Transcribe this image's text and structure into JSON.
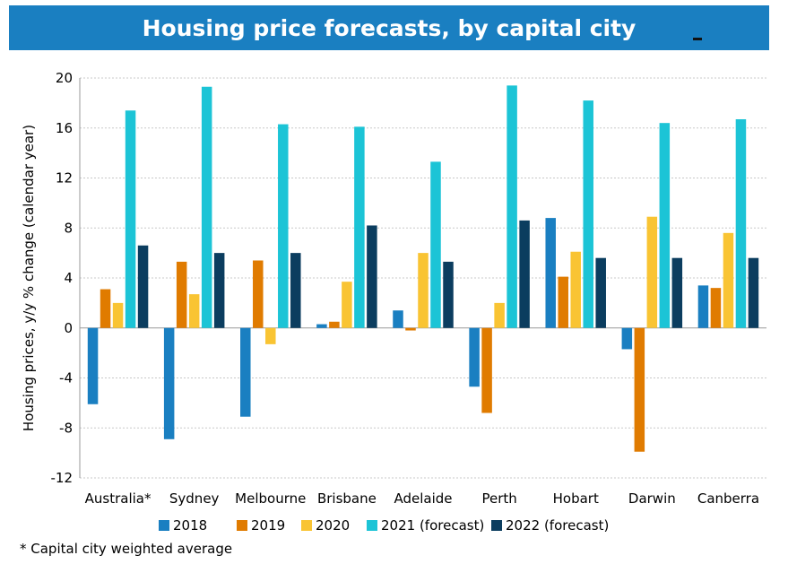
{
  "chart_data": {
    "type": "bar",
    "title": "Housing price forecasts, by capital city",
    "ylabel": "Housing prices, y/y % change (calendar year)",
    "xlabel": "",
    "ylim": [
      -12,
      20
    ],
    "yticks": [
      -12,
      -8,
      -4,
      0,
      4,
      8,
      12,
      16,
      20
    ],
    "grid": true,
    "legend_position": "bottom",
    "categories": [
      "Australia*",
      "Sydney",
      "Melbourne",
      "Brisbane",
      "Adelaide",
      "Perth",
      "Hobart",
      "Darwin",
      "Canberra"
    ],
    "series": [
      {
        "name": "2018",
        "color": "#1a7fc1",
        "values": [
          -6.1,
          -8.9,
          -7.1,
          0.3,
          1.4,
          -4.7,
          8.8,
          -1.7,
          3.4
        ]
      },
      {
        "name": "2019",
        "color": "#e07b00",
        "values": [
          3.1,
          5.3,
          5.4,
          0.5,
          -0.2,
          -6.8,
          4.1,
          -9.9,
          3.2
        ]
      },
      {
        "name": "2020",
        "color": "#f9c433",
        "values": [
          2.0,
          2.7,
          -1.3,
          3.7,
          6.0,
          2.0,
          6.1,
          8.9,
          7.6
        ]
      },
      {
        "name": "2021 (forecast)",
        "color": "#1cc4d6",
        "values": [
          17.4,
          19.3,
          16.3,
          16.1,
          13.3,
          19.4,
          18.2,
          16.4,
          16.7
        ]
      },
      {
        "name": "2022 (forecast)",
        "color": "#0b3d5f",
        "values": [
          6.6,
          6.0,
          6.0,
          8.2,
          5.3,
          8.6,
          5.6,
          5.6,
          5.6
        ]
      }
    ],
    "footnote": "* Capital city weighted average"
  }
}
